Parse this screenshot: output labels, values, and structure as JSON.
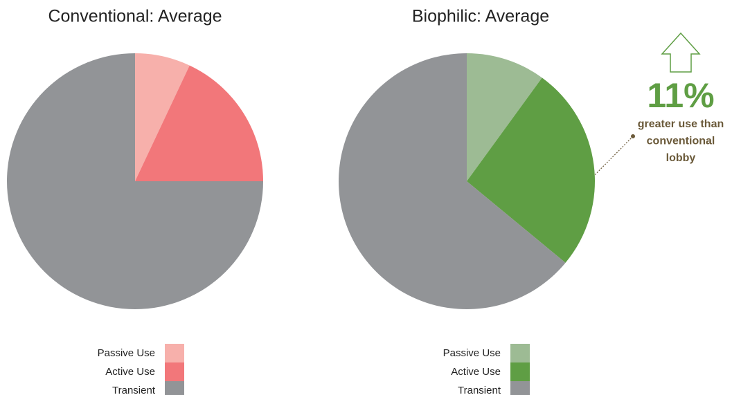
{
  "chart_data": [
    {
      "type": "pie",
      "title": "Conventional: Average",
      "categories": [
        "Passive Use",
        "Active Use",
        "Transient"
      ],
      "values": [
        7,
        18,
        75
      ],
      "colors": [
        "#f7b0ab",
        "#f2777a",
        "#929497"
      ]
    },
    {
      "type": "pie",
      "title": "Biophilic: Average",
      "categories": [
        "Passive Use",
        "Active Use",
        "Transient"
      ],
      "values": [
        10,
        26,
        64
      ],
      "colors": [
        "#9dbb94",
        "#5f9e44",
        "#929497"
      ],
      "annotation": {
        "headline": "11%",
        "lines": [
          "greater use than",
          "conventional",
          "lobby"
        ]
      }
    }
  ]
}
